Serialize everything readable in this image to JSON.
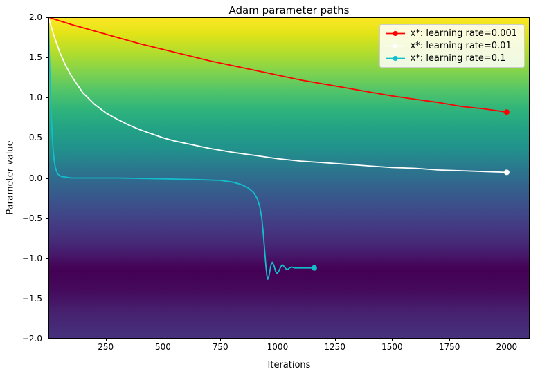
{
  "chart_data": {
    "type": "line",
    "title": "Adam parameter paths",
    "xlabel": "Iterations",
    "ylabel": "Parameter value",
    "xlim": [
      0,
      2100
    ],
    "ylim": [
      -2.0,
      2.0
    ],
    "grid": false,
    "legend_position": "upper right",
    "xticks": [
      250,
      500,
      750,
      1000,
      1250,
      1500,
      1750,
      2000
    ],
    "xtick_labels": [
      "250",
      "500",
      "750",
      "1000",
      "1250",
      "1500",
      "1750",
      "2000"
    ],
    "yticks": [
      2.0,
      1.5,
      1.0,
      0.5,
      0.0,
      -0.5,
      -1.0,
      -1.5,
      -2.0
    ],
    "ytick_labels": [
      "2.0",
      "1.5",
      "1.0",
      "0.5",
      "0.0",
      "−0.5",
      "−1.0",
      "−1.5",
      "−2.0"
    ],
    "background": {
      "type": "vertical-gradient",
      "colormap": "viridis",
      "stops": [
        {
          "offset": 0,
          "color": "#fde725"
        },
        {
          "offset": 5,
          "color": "#e2e418"
        },
        {
          "offset": 11,
          "color": "#b2dd2c"
        },
        {
          "offset": 17,
          "color": "#81d34d"
        },
        {
          "offset": 23,
          "color": "#50c46a"
        },
        {
          "offset": 29,
          "color": "#2eb37c"
        },
        {
          "offset": 35,
          "color": "#22a185"
        },
        {
          "offset": 41,
          "color": "#21918c"
        },
        {
          "offset": 47,
          "color": "#2a788e"
        },
        {
          "offset": 53,
          "color": "#34618d"
        },
        {
          "offset": 59,
          "color": "#3d4e8a"
        },
        {
          "offset": 65,
          "color": "#443a83"
        },
        {
          "offset": 70,
          "color": "#462a78"
        },
        {
          "offset": 74,
          "color": "#47186a"
        },
        {
          "offset": 77,
          "color": "#45075a"
        },
        {
          "offset": 79,
          "color": "#440154"
        },
        {
          "offset": 85,
          "color": "#450a5c"
        },
        {
          "offset": 91,
          "color": "#461f6d"
        },
        {
          "offset": 100,
          "color": "#46327e"
        }
      ]
    },
    "series": [
      {
        "name": "x*: learning rate=0.001",
        "color": "#ff0000",
        "marker": "o",
        "end_point": [
          2000,
          0.82
        ],
        "points": [
          [
            0,
            2.0
          ],
          [
            100,
            1.91
          ],
          [
            200,
            1.83
          ],
          [
            300,
            1.75
          ],
          [
            400,
            1.67
          ],
          [
            500,
            1.6
          ],
          [
            600,
            1.53
          ],
          [
            700,
            1.46
          ],
          [
            800,
            1.4
          ],
          [
            900,
            1.34
          ],
          [
            1000,
            1.28
          ],
          [
            1100,
            1.22
          ],
          [
            1200,
            1.17
          ],
          [
            1300,
            1.12
          ],
          [
            1400,
            1.07
          ],
          [
            1500,
            1.02
          ],
          [
            1600,
            0.98
          ],
          [
            1700,
            0.94
          ],
          [
            1800,
            0.89
          ],
          [
            1900,
            0.86
          ],
          [
            2000,
            0.82
          ]
        ]
      },
      {
        "name": "x*: learning rate=0.01",
        "color": "#ffffff",
        "marker": "o",
        "end_point": [
          2000,
          0.07
        ],
        "points": [
          [
            0,
            2.0
          ],
          [
            25,
            1.76
          ],
          [
            50,
            1.56
          ],
          [
            75,
            1.4
          ],
          [
            100,
            1.27
          ],
          [
            150,
            1.06
          ],
          [
            200,
            0.92
          ],
          [
            250,
            0.81
          ],
          [
            300,
            0.73
          ],
          [
            350,
            0.66
          ],
          [
            400,
            0.6
          ],
          [
            450,
            0.55
          ],
          [
            500,
            0.5
          ],
          [
            550,
            0.46
          ],
          [
            600,
            0.43
          ],
          [
            700,
            0.37
          ],
          [
            800,
            0.32
          ],
          [
            900,
            0.28
          ],
          [
            1000,
            0.24
          ],
          [
            1100,
            0.21
          ],
          [
            1200,
            0.19
          ],
          [
            1300,
            0.17
          ],
          [
            1400,
            0.15
          ],
          [
            1500,
            0.13
          ],
          [
            1600,
            0.12
          ],
          [
            1700,
            0.1
          ],
          [
            1800,
            0.09
          ],
          [
            1900,
            0.08
          ],
          [
            2000,
            0.07
          ]
        ]
      },
      {
        "name": "x*: learning rate=0.1",
        "color": "#11bfcc",
        "marker": "o",
        "end_point": [
          1160,
          -1.12
        ],
        "points": [
          [
            0,
            2.0
          ],
          [
            4,
            1.52
          ],
          [
            8,
            1.12
          ],
          [
            12,
            0.8
          ],
          [
            16,
            0.55
          ],
          [
            20,
            0.37
          ],
          [
            25,
            0.22
          ],
          [
            30,
            0.13
          ],
          [
            40,
            0.05
          ],
          [
            55,
            0.02
          ],
          [
            75,
            0.01
          ],
          [
            100,
            0.0
          ],
          [
            300,
            0.0
          ],
          [
            500,
            -0.01
          ],
          [
            650,
            -0.02
          ],
          [
            750,
            -0.03
          ],
          [
            800,
            -0.05
          ],
          [
            840,
            -0.08
          ],
          [
            870,
            -0.12
          ],
          [
            895,
            -0.18
          ],
          [
            910,
            -0.25
          ],
          [
            922,
            -0.35
          ],
          [
            931,
            -0.5
          ],
          [
            938,
            -0.7
          ],
          [
            944,
            -0.92
          ],
          [
            949,
            -1.1
          ],
          [
            953,
            -1.21
          ],
          [
            957,
            -1.26
          ],
          [
            961,
            -1.24
          ],
          [
            966,
            -1.16
          ],
          [
            971,
            -1.08
          ],
          [
            977,
            -1.05
          ],
          [
            984,
            -1.09
          ],
          [
            991,
            -1.16
          ],
          [
            998,
            -1.19
          ],
          [
            1005,
            -1.16
          ],
          [
            1013,
            -1.11
          ],
          [
            1020,
            -1.08
          ],
          [
            1028,
            -1.1
          ],
          [
            1036,
            -1.13
          ],
          [
            1044,
            -1.14
          ],
          [
            1052,
            -1.12
          ],
          [
            1062,
            -1.11
          ],
          [
            1075,
            -1.12
          ],
          [
            1100,
            -1.12
          ],
          [
            1130,
            -1.12
          ],
          [
            1160,
            -1.12
          ]
        ]
      }
    ]
  }
}
